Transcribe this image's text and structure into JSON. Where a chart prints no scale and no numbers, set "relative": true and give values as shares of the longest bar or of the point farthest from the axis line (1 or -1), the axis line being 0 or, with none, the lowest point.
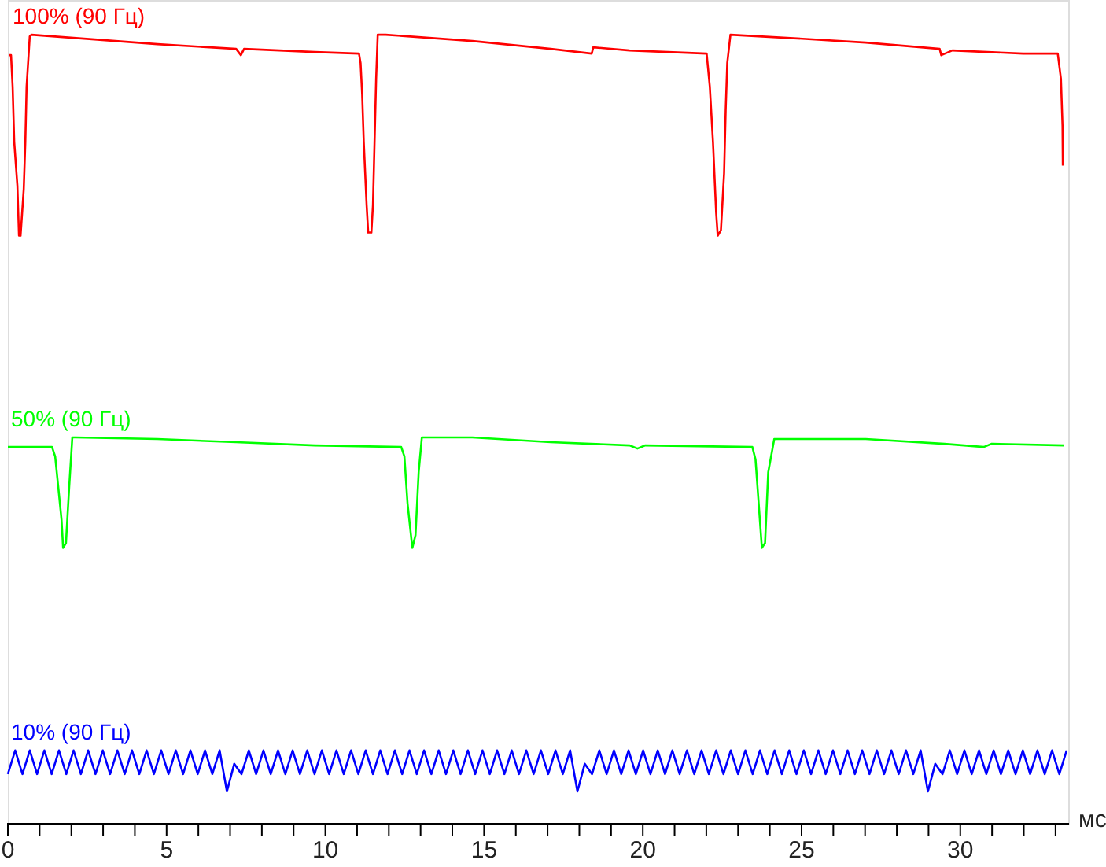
{
  "chart_data": {
    "type": "line",
    "relative": true,
    "xlabel": "мс",
    "xlim": [
      0,
      33.4
    ],
    "xticks": [
      0,
      {
        "value": 1,
        "label": null
      },
      {
        "value": 2,
        "label": null
      },
      {
        "value": 3,
        "label": null
      },
      {
        "value": 4,
        "label": null
      },
      5,
      {
        "value": 6,
        "label": null
      },
      {
        "value": 7,
        "label": null
      },
      {
        "value": 8,
        "label": null
      },
      {
        "value": 9,
        "label": null
      },
      10,
      {
        "value": 11,
        "label": null
      },
      {
        "value": 12,
        "label": null
      },
      {
        "value": 13,
        "label": null
      },
      {
        "value": 14,
        "label": null
      },
      15,
      {
        "value": 16,
        "label": null
      },
      {
        "value": 17,
        "label": null
      },
      {
        "value": 18,
        "label": null
      },
      {
        "value": 19,
        "label": null
      },
      20,
      {
        "value": 21,
        "label": null
      },
      {
        "value": 22,
        "label": null
      },
      {
        "value": 23,
        "label": null
      },
      {
        "value": 24,
        "label": null
      },
      25,
      {
        "value": 26,
        "label": null
      },
      {
        "value": 27,
        "label": null
      },
      {
        "value": 28,
        "label": null
      },
      {
        "value": 29,
        "label": null
      },
      30,
      {
        "value": 31,
        "label": null
      },
      {
        "value": 32,
        "label": null
      },
      {
        "value": 33,
        "label": null
      }
    ],
    "grid": false,
    "legend": false,
    "marker": "none",
    "line_style": "solid",
    "series": [
      {
        "name": "100% (90 Гц)",
        "color": "#ff0000",
        "x": [
          0.05,
          0.1,
          0.15,
          0.2,
          0.3,
          0.35,
          0.4,
          0.5,
          0.55,
          0.59,
          0.69,
          0.74,
          2.73,
          4.71,
          7.19,
          7.34,
          7.44,
          9.67,
          11.06,
          11.11,
          11.16,
          11.21,
          11.3,
          11.35,
          11.45,
          11.5,
          11.55,
          11.6,
          11.65,
          11.9,
          14.63,
          17.1,
          18.39,
          18.44,
          19.58,
          22.01,
          22.11,
          22.21,
          22.31,
          22.36,
          22.46,
          22.56,
          22.61,
          22.66,
          22.76,
          24.54,
          27.02,
          29.35,
          29.4,
          29.75,
          31.98,
          33.07,
          33.17,
          33.22,
          33.23
        ],
        "values": [
          0.974,
          0.974,
          0.934,
          0.864,
          0.808,
          0.745,
          0.745,
          0.804,
          0.864,
          0.934,
          0.998,
          1,
          0.994,
          0.988,
          0.982,
          0.974,
          0.982,
          0.978,
          0.976,
          0.964,
          0.924,
          0.864,
          0.784,
          0.749,
          0.749,
          0.784,
          0.864,
          0.944,
          1,
          1,
          0.992,
          0.982,
          0.976,
          0.984,
          0.98,
          0.976,
          0.934,
          0.864,
          0.774,
          0.745,
          0.752,
          0.824,
          0.904,
          0.964,
          1,
          0.996,
          0.99,
          0.982,
          0.974,
          0.98,
          0.976,
          0.976,
          0.944,
          0.884,
          0.834
        ]
      },
      {
        "name": "50% (90 Гц)",
        "color": "#00ff00",
        "x": [
          0,
          1.39,
          1.49,
          1.59,
          1.69,
          1.74,
          1.83,
          1.93,
          2.03,
          2.13,
          4.71,
          7.19,
          9.67,
          12.39,
          12.49,
          12.59,
          12.74,
          12.84,
          12.94,
          13.04,
          14.63,
          17.1,
          19.58,
          19.83,
          20.08,
          23.45,
          23.55,
          23.65,
          23.75,
          23.85,
          23.95,
          24.14,
          27.02,
          29.5,
          30.74,
          30.99,
          33.27
        ],
        "values": [
          0.477,
          0.477,
          0.465,
          0.425,
          0.385,
          0.349,
          0.355,
          0.425,
          0.489,
          0.489,
          0.487,
          0.483,
          0.479,
          0.477,
          0.465,
          0.405,
          0.349,
          0.365,
          0.445,
          0.489,
          0.489,
          0.483,
          0.479,
          0.475,
          0.479,
          0.477,
          0.461,
          0.405,
          0.349,
          0.355,
          0.445,
          0.487,
          0.487,
          0.481,
          0.477,
          0.481,
          0.479
        ]
      },
      {
        "name": "10% (90 Гц)",
        "color": "#0000ff",
        "x": [
          0,
          0.23,
          0.46,
          0.69,
          0.92,
          1.15,
          1.38,
          1.61,
          1.84,
          2.07,
          2.3,
          2.53,
          2.76,
          2.99,
          3.22,
          3.45,
          3.68,
          3.91,
          4.14,
          4.37,
          4.6,
          4.83,
          5.06,
          5.29,
          5.52,
          5.75,
          5.98,
          6.21,
          6.44,
          6.67,
          6.9,
          7.13,
          7.36,
          7.59,
          7.82,
          8.05,
          8.28,
          8.51,
          8.74,
          8.97,
          9.2,
          9.43,
          9.66,
          9.89,
          10.12,
          10.35,
          10.58,
          10.81,
          11.04,
          11.27,
          11.5,
          11.73,
          11.96,
          12.19,
          12.42,
          12.65,
          12.88,
          13.11,
          13.34,
          13.57,
          13.8,
          14.03,
          14.26,
          14.49,
          14.72,
          14.95,
          15.18,
          15.41,
          15.64,
          15.87,
          16.1,
          16.33,
          16.56,
          16.79,
          17.02,
          17.25,
          17.48,
          17.71,
          17.94,
          18.17,
          18.4,
          18.63,
          18.86,
          19.09,
          19.32,
          19.55,
          19.78,
          20.01,
          20.24,
          20.47,
          20.7,
          20.93,
          21.16,
          21.39,
          21.62,
          21.85,
          22.08,
          22.31,
          22.54,
          22.77,
          23,
          23.23,
          23.46,
          23.69,
          23.92,
          24.15,
          24.38,
          24.61,
          24.84,
          25.07,
          25.3,
          25.53,
          25.76,
          25.99,
          26.22,
          26.45,
          26.68,
          26.91,
          27.14,
          27.37,
          27.6,
          27.83,
          28.06,
          28.29,
          28.52,
          28.75,
          28.98,
          29.21,
          29.44,
          29.67,
          29.9,
          30.13,
          30.36,
          30.59,
          30.82,
          31.05,
          31.28,
          31.51,
          31.74,
          31.97,
          32.2,
          32.43,
          32.66,
          32.89,
          33.12,
          33.35
        ],
        "values": [
          0.062,
          0.092,
          0.062,
          0.092,
          0.062,
          0.092,
          0.062,
          0.092,
          0.062,
          0.092,
          0.062,
          0.092,
          0.062,
          0.092,
          0.062,
          0.092,
          0.062,
          0.092,
          0.062,
          0.092,
          0.062,
          0.092,
          0.062,
          0.092,
          0.062,
          0.092,
          0.062,
          0.092,
          0.062,
          0.092,
          0.04,
          0.075,
          0.062,
          0.092,
          0.062,
          0.092,
          0.062,
          0.092,
          0.062,
          0.092,
          0.062,
          0.092,
          0.062,
          0.092,
          0.062,
          0.092,
          0.062,
          0.092,
          0.062,
          0.092,
          0.062,
          0.092,
          0.062,
          0.092,
          0.062,
          0.092,
          0.062,
          0.092,
          0.062,
          0.092,
          0.062,
          0.092,
          0.062,
          0.092,
          0.062,
          0.092,
          0.062,
          0.092,
          0.062,
          0.092,
          0.062,
          0.092,
          0.062,
          0.092,
          0.062,
          0.092,
          0.062,
          0.092,
          0.04,
          0.075,
          0.062,
          0.092,
          0.062,
          0.092,
          0.062,
          0.092,
          0.062,
          0.092,
          0.062,
          0.092,
          0.062,
          0.092,
          0.062,
          0.092,
          0.062,
          0.092,
          0.062,
          0.092,
          0.062,
          0.092,
          0.062,
          0.092,
          0.062,
          0.092,
          0.062,
          0.092,
          0.062,
          0.092,
          0.062,
          0.092,
          0.062,
          0.092,
          0.062,
          0.092,
          0.062,
          0.092,
          0.062,
          0.092,
          0.062,
          0.092,
          0.062,
          0.092,
          0.062,
          0.092,
          0.062,
          0.092,
          0.04,
          0.075,
          0.062,
          0.092,
          0.062,
          0.092,
          0.062,
          0.092,
          0.062,
          0.092,
          0.062,
          0.092,
          0.062,
          0.092,
          0.062,
          0.092,
          0.062,
          0.092,
          0.062,
          0.092
        ]
      }
    ]
  }
}
